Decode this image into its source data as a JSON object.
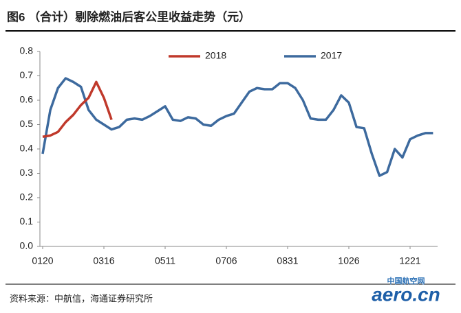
{
  "title": "图6 （合计）剔除燃油后客公里收益走势（元）",
  "source": "资料来源：中航信，海通证券研究所",
  "watermark": "aero.cn",
  "watermark_sub": "中国航空网",
  "chart_data": {
    "type": "line",
    "categories": [
      "0120",
      null,
      null,
      null,
      null,
      null,
      null,
      null,
      "0316",
      null,
      null,
      null,
      null,
      null,
      null,
      null,
      "0511",
      null,
      null,
      null,
      null,
      null,
      null,
      null,
      "0706",
      null,
      null,
      null,
      null,
      null,
      null,
      null,
      "0831",
      null,
      null,
      null,
      null,
      null,
      null,
      null,
      "1026",
      null,
      null,
      null,
      null,
      null,
      null,
      null,
      "1221",
      null,
      null,
      null
    ],
    "series": [
      {
        "name": "2018",
        "color": "#c0392b",
        "values": [
          0.45,
          0.455,
          0.47,
          0.51,
          0.54,
          0.58,
          0.61,
          0.675,
          0.61,
          0.52,
          null,
          null,
          null,
          null,
          null,
          null,
          null,
          null,
          null,
          null,
          null,
          null,
          null,
          null,
          null,
          null,
          null,
          null,
          null,
          null,
          null,
          null,
          null,
          null,
          null,
          null,
          null,
          null,
          null,
          null,
          null,
          null,
          null,
          null,
          null,
          null,
          null,
          null,
          null,
          null,
          null,
          null
        ]
      },
      {
        "name": "2017",
        "color": "#3d6a9e",
        "values": [
          0.38,
          0.56,
          0.65,
          0.69,
          0.675,
          0.655,
          0.56,
          0.52,
          0.5,
          0.48,
          0.49,
          0.52,
          0.525,
          0.52,
          0.535,
          0.555,
          0.575,
          0.52,
          0.515,
          0.53,
          0.525,
          0.5,
          0.495,
          0.52,
          0.535,
          0.545,
          0.59,
          0.635,
          0.65,
          0.645,
          0.645,
          0.67,
          0.67,
          0.65,
          0.6,
          0.525,
          0.52,
          0.52,
          0.56,
          0.62,
          0.59,
          0.49,
          0.485,
          0.38,
          0.29,
          0.305,
          0.4,
          0.365,
          0.44,
          0.455,
          0.465,
          0.465
        ]
      }
    ],
    "ylim": [
      0,
      0.8
    ],
    "yticks": [
      {
        "value": 0,
        "label": "0.0"
      },
      0.1,
      0.2,
      0.3,
      0.4,
      0.5,
      0.6,
      0.7,
      0.8
    ],
    "legend": "top",
    "grid": false
  }
}
